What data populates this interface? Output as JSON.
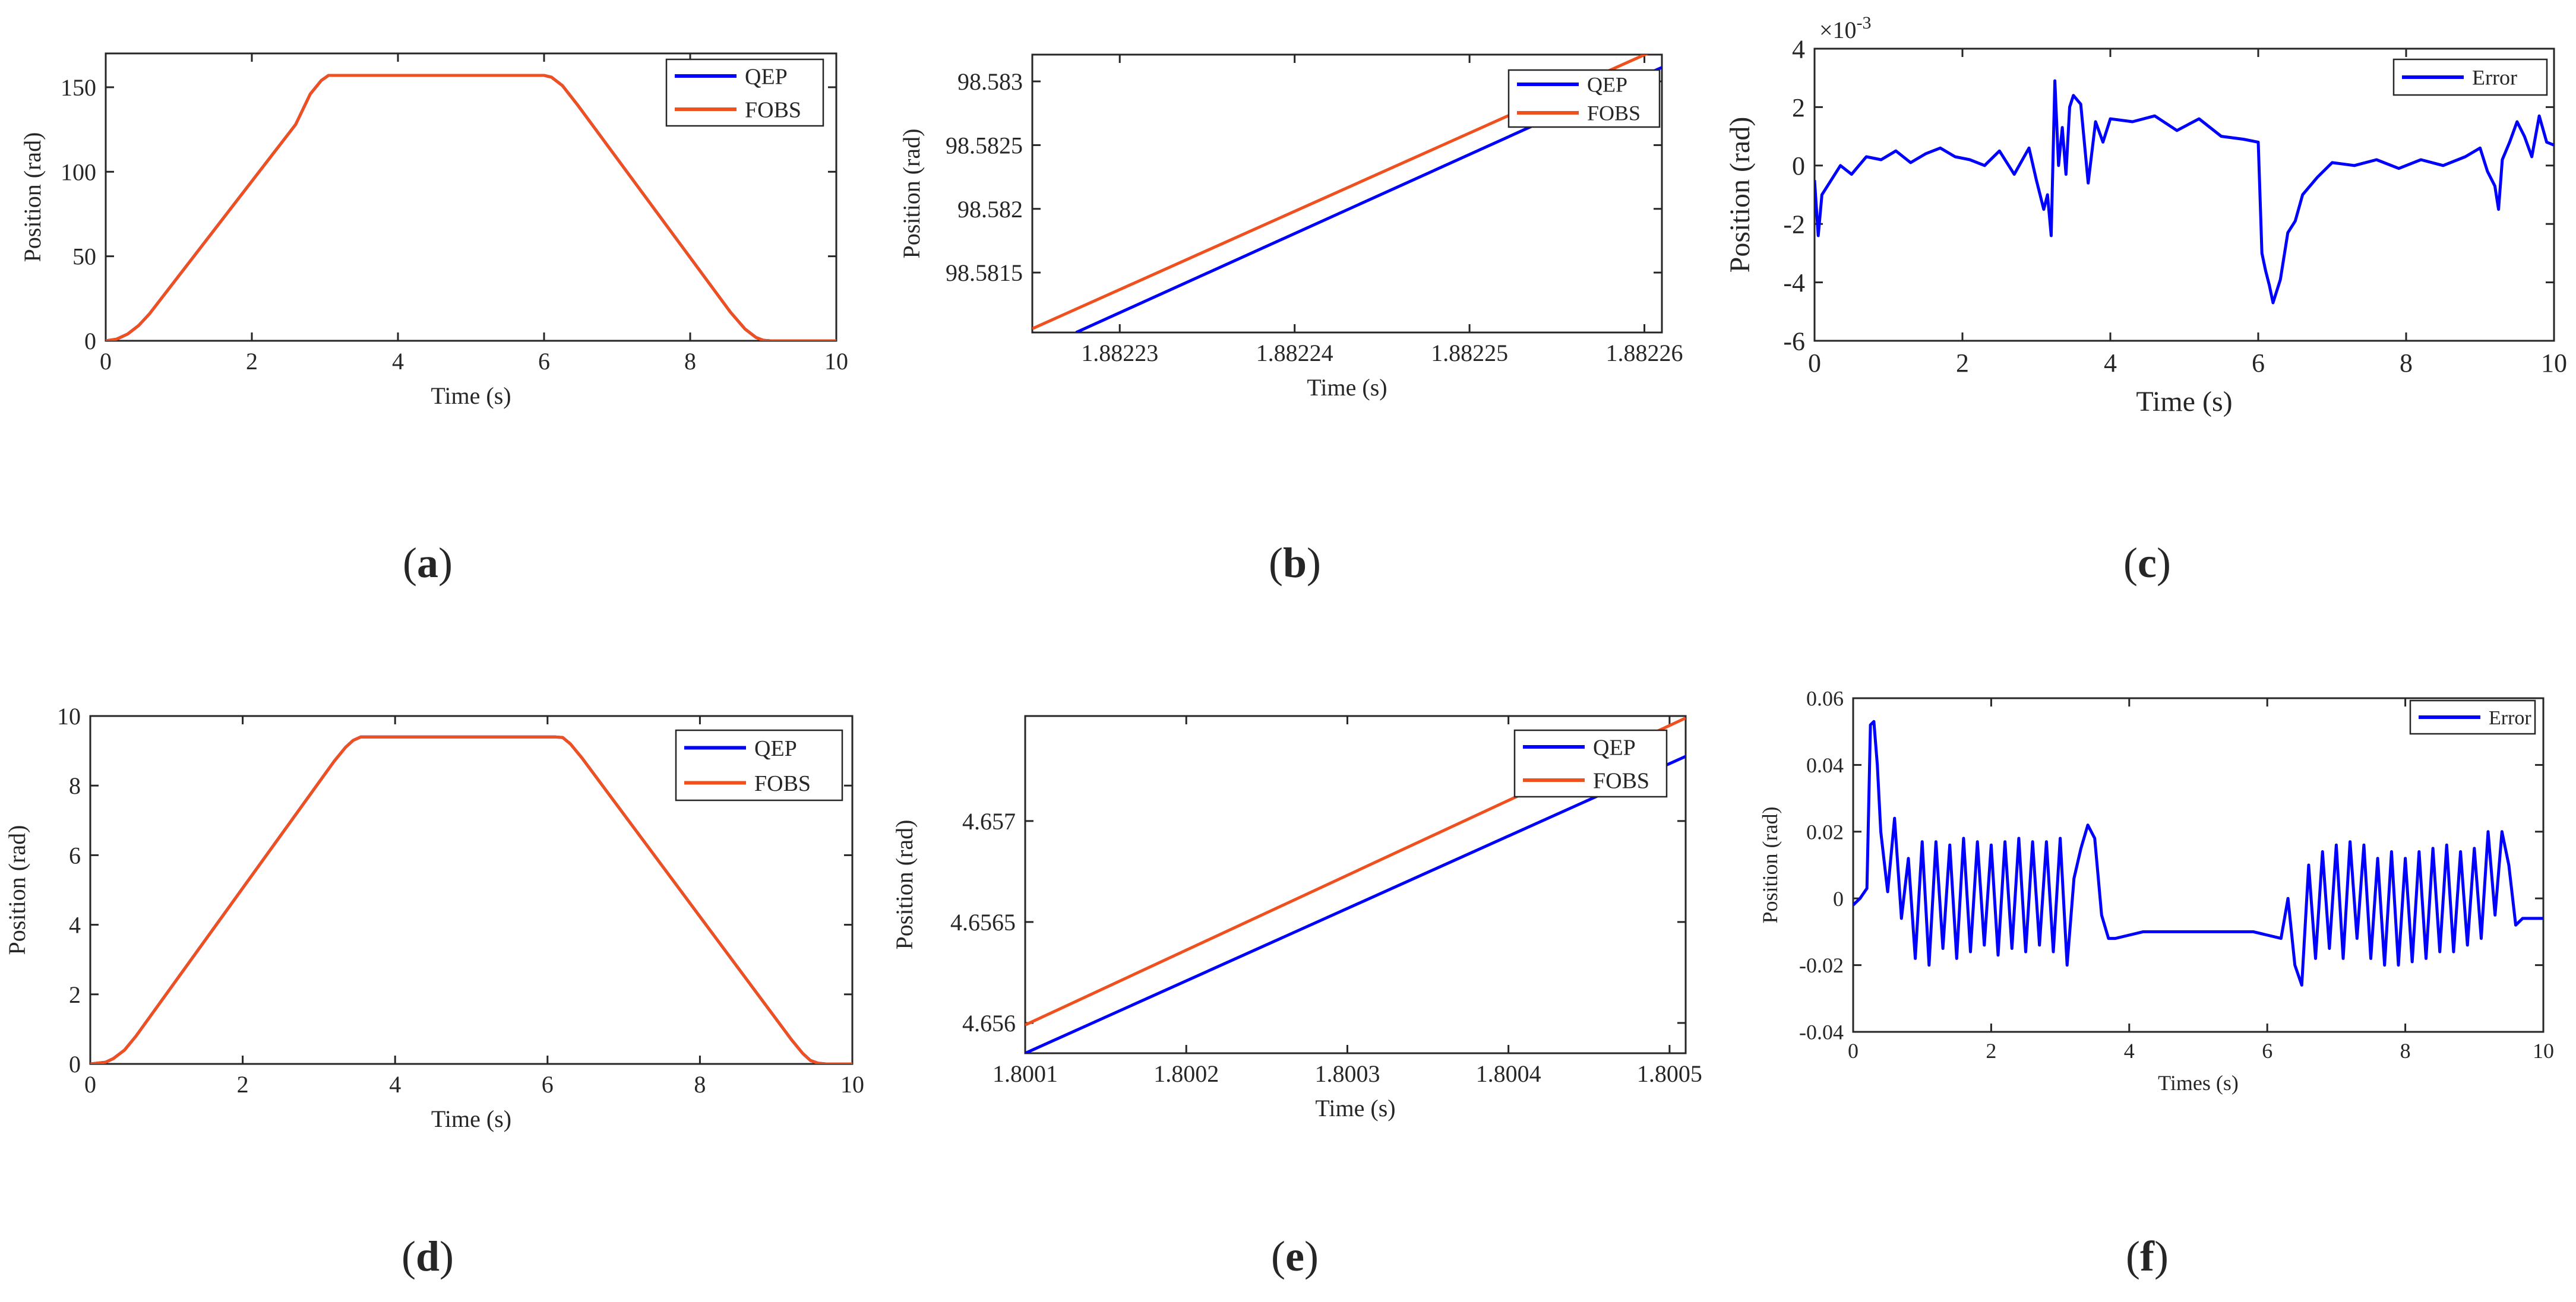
{
  "colors": {
    "qep": "#0000FF",
    "fobs": "#F0501E",
    "error": "#0000FF",
    "axis": "#262626"
  },
  "chart_data": [
    {
      "id": "a",
      "type": "line",
      "xlabel": "Time (s)",
      "ylabel": "Position (rad)",
      "xlim": [
        0,
        10
      ],
      "ylim": [
        0,
        170
      ],
      "xticks": [
        0,
        2,
        4,
        6,
        8,
        10
      ],
      "xtick_labels": [
        "0",
        "2",
        "4",
        "6",
        "8",
        "10"
      ],
      "yticks": [
        0,
        50,
        100,
        150
      ],
      "ytick_labels": [
        "0",
        "50",
        "100",
        "150"
      ],
      "legend": [
        "QEP",
        "FOBS"
      ],
      "series": [
        {
          "name": "QEP",
          "x": [
            0,
            0.15,
            0.3,
            0.45,
            0.6,
            2.6,
            2.8,
            2.95,
            3.05,
            3.2,
            6.0,
            6.1,
            6.25,
            6.45,
            8.55,
            8.75,
            8.9,
            9.0,
            9.1,
            10
          ],
          "y": [
            0,
            1,
            4,
            9,
            16,
            128,
            146,
            154,
            157,
            157,
            157,
            156,
            151,
            140,
            17,
            7,
            2,
            0.3,
            0,
            0
          ]
        },
        {
          "name": "FOBS",
          "x": [
            0,
            0.15,
            0.3,
            0.45,
            0.6,
            2.6,
            2.8,
            2.95,
            3.05,
            3.2,
            6.0,
            6.1,
            6.25,
            6.45,
            8.55,
            8.75,
            8.9,
            9.0,
            9.1,
            10
          ],
          "y": [
            0,
            1,
            4,
            9,
            16,
            128,
            146,
            154,
            157,
            157,
            157,
            156,
            151,
            140,
            17,
            7,
            2,
            0.3,
            0,
            0
          ]
        }
      ],
      "caption": "(a)"
    },
    {
      "id": "b",
      "type": "line",
      "xlabel": "Time (s)",
      "ylabel": "Position (rad)",
      "xlim": [
        1.882225,
        1.882261
      ],
      "ylim": [
        98.58103,
        98.58321
      ],
      "xticks": [
        1.88223,
        1.88224,
        1.88225,
        1.88226
      ],
      "xtick_labels": [
        "1.88223",
        "1.88224",
        "1.88225",
        "1.88226"
      ],
      "yticks": [
        98.5815,
        98.582,
        98.5825,
        98.583
      ],
      "ytick_labels": [
        "98.5815",
        "98.582",
        "98.5825",
        "98.583"
      ],
      "legend": [
        "QEP",
        "FOBS"
      ],
      "series": [
        {
          "name": "QEP",
          "x": [
            1.8822275,
            1.882261
          ],
          "y": [
            98.58103,
            98.58311
          ]
        },
        {
          "name": "FOBS",
          "x": [
            1.882225,
            1.882261
          ],
          "y": [
            98.58106,
            98.58327
          ]
        }
      ],
      "caption": "(b)"
    },
    {
      "id": "c",
      "type": "line",
      "xlabel": "Time (s)",
      "ylabel": "Position (rad)",
      "exponent_label": "×10",
      "exponent_power": "-3",
      "xlim": [
        0,
        10
      ],
      "ylim": [
        -6,
        4
      ],
      "xticks": [
        0,
        2,
        4,
        6,
        8,
        10
      ],
      "xtick_labels": [
        "0",
        "2",
        "4",
        "6",
        "8",
        "10"
      ],
      "yticks": [
        -6,
        -4,
        -2,
        0,
        2,
        4
      ],
      "ytick_labels": [
        "-6",
        "-4",
        "-2",
        "0",
        "2",
        "4"
      ],
      "legend": [
        "Error"
      ],
      "series": [
        {
          "name": "Error",
          "x": [
            0,
            0.05,
            0.1,
            0.2,
            0.35,
            0.5,
            0.7,
            0.9,
            1.1,
            1.3,
            1.5,
            1.7,
            1.9,
            2.1,
            2.3,
            2.5,
            2.7,
            2.9,
            3.0,
            3.1,
            3.15,
            3.2,
            3.25,
            3.3,
            3.35,
            3.4,
            3.45,
            3.5,
            3.6,
            3.7,
            3.8,
            3.9,
            4.0,
            4.3,
            4.6,
            4.9,
            5.2,
            5.5,
            5.8,
            6.0,
            6.05,
            6.1,
            6.15,
            6.2,
            6.3,
            6.4,
            6.5,
            6.6,
            6.8,
            7.0,
            7.3,
            7.6,
            7.9,
            8.2,
            8.5,
            8.8,
            9.0,
            9.1,
            9.2,
            9.25,
            9.3,
            9.4,
            9.5,
            9.6,
            9.7,
            9.8,
            9.9,
            10
          ],
          "y": [
            -0.5,
            -2.4,
            -1.0,
            -0.6,
            0.0,
            -0.3,
            0.3,
            0.2,
            0.5,
            0.1,
            0.4,
            0.6,
            0.3,
            0.2,
            0.0,
            0.5,
            -0.3,
            0.6,
            -0.5,
            -1.5,
            -1.0,
            -2.4,
            2.9,
            0.0,
            1.3,
            -0.3,
            2.0,
            2.4,
            2.1,
            -0.6,
            1.5,
            0.8,
            1.6,
            1.5,
            1.7,
            1.2,
            1.6,
            1.0,
            0.9,
            0.8,
            -3.0,
            -3.6,
            -4.1,
            -4.7,
            -3.9,
            -2.3,
            -1.9,
            -1.0,
            -0.4,
            0.1,
            0.0,
            0.2,
            -0.1,
            0.2,
            0.0,
            0.3,
            0.6,
            -0.2,
            -0.7,
            -1.5,
            0.2,
            0.8,
            1.5,
            1.0,
            0.3,
            1.7,
            0.8,
            0.7
          ]
        }
      ],
      "caption": "(c)"
    },
    {
      "id": "d",
      "type": "line",
      "xlabel": "Time (s)",
      "ylabel": "Position (rad)",
      "xlim": [
        0,
        10
      ],
      "ylim": [
        0,
        10
      ],
      "xticks": [
        0,
        2,
        4,
        6,
        8,
        10
      ],
      "xtick_labels": [
        "0",
        "2",
        "4",
        "6",
        "8",
        "10"
      ],
      "yticks": [
        0,
        2,
        4,
        6,
        8,
        10
      ],
      "ytick_labels": [
        "0",
        "2",
        "4",
        "6",
        "8",
        "10"
      ],
      "legend": [
        "QEP",
        "FOBS"
      ],
      "series": [
        {
          "name": "QEP",
          "x": [
            0,
            0.2,
            0.3,
            0.45,
            0.6,
            3.2,
            3.35,
            3.45,
            3.55,
            3.7,
            6.1,
            6.2,
            6.3,
            6.45,
            9.2,
            9.35,
            9.45,
            9.55,
            9.65,
            10
          ],
          "y": [
            0,
            0.05,
            0.15,
            0.4,
            0.8,
            8.7,
            9.1,
            9.3,
            9.4,
            9.4,
            9.4,
            9.38,
            9.2,
            8.8,
            0.7,
            0.3,
            0.1,
            0.02,
            0,
            0
          ]
        },
        {
          "name": "FOBS",
          "x": [
            0,
            0.2,
            0.3,
            0.45,
            0.6,
            3.2,
            3.35,
            3.45,
            3.55,
            3.7,
            6.1,
            6.2,
            6.3,
            6.45,
            9.2,
            9.35,
            9.45,
            9.55,
            9.65,
            10
          ],
          "y": [
            0,
            0.05,
            0.15,
            0.4,
            0.8,
            8.7,
            9.1,
            9.3,
            9.4,
            9.4,
            9.4,
            9.38,
            9.2,
            8.8,
            0.7,
            0.3,
            0.1,
            0.02,
            0,
            0
          ]
        }
      ],
      "caption": "(d)"
    },
    {
      "id": "e",
      "type": "line",
      "xlabel": "Time (s)",
      "ylabel": "Position (rad)",
      "xlim": [
        1.8001,
        1.80051
      ],
      "ylim": [
        4.65585,
        4.65752
      ],
      "xticks": [
        1.8001,
        1.8002,
        1.8003,
        1.8004,
        1.8005
      ],
      "xtick_labels": [
        "1.8001",
        "1.8002",
        "1.8003",
        "1.8004",
        "1.8005"
      ],
      "yticks": [
        4.656,
        4.6565,
        4.657
      ],
      "ytick_labels": [
        "4.656",
        "4.6565",
        "4.657"
      ],
      "legend": [
        "QEP",
        "FOBS"
      ],
      "series": [
        {
          "name": "QEP",
          "x": [
            1.8001,
            1.80051
          ],
          "y": [
            4.65585,
            4.65732
          ]
        },
        {
          "name": "FOBS",
          "x": [
            1.8001,
            1.80051
          ],
          "y": [
            4.65599,
            4.65751
          ]
        }
      ],
      "caption": "(e)"
    },
    {
      "id": "f",
      "type": "line",
      "xlabel": "Times (s)",
      "ylabel": "Position (rad)",
      "xlim": [
        0,
        10
      ],
      "ylim": [
        -0.04,
        0.06
      ],
      "xticks": [
        0,
        2,
        4,
        6,
        8,
        10
      ],
      "xtick_labels": [
        "0",
        "2",
        "4",
        "6",
        "8",
        "10"
      ],
      "yticks": [
        -0.04,
        -0.02,
        0,
        0.02,
        0.04,
        0.06
      ],
      "ytick_labels": [
        "-0.04",
        "-0.02",
        "0",
        "0.02",
        "0.04",
        "0.06"
      ],
      "legend": [
        "Error"
      ],
      "series": [
        {
          "name": "Error",
          "x": [
            0,
            0.1,
            0.2,
            0.25,
            0.3,
            0.35,
            0.4,
            0.5,
            0.6,
            0.7,
            0.8,
            0.9,
            1.0,
            1.1,
            1.2,
            1.3,
            1.4,
            1.5,
            1.6,
            1.7,
            1.8,
            1.9,
            2.0,
            2.1,
            2.2,
            2.3,
            2.4,
            2.5,
            2.6,
            2.7,
            2.8,
            2.9,
            3.0,
            3.1,
            3.2,
            3.3,
            3.4,
            3.5,
            3.6,
            3.7,
            3.8,
            4.0,
            4.2,
            5.0,
            5.8,
            6.0,
            6.2,
            6.3,
            6.4,
            6.5,
            6.6,
            6.7,
            6.8,
            6.9,
            7.0,
            7.1,
            7.2,
            7.3,
            7.4,
            7.5,
            7.6,
            7.7,
            7.8,
            7.9,
            8.0,
            8.1,
            8.2,
            8.3,
            8.4,
            8.5,
            8.6,
            8.7,
            8.8,
            8.9,
            9.0,
            9.1,
            9.2,
            9.3,
            9.4,
            9.5,
            9.6,
            9.7,
            10
          ],
          "y": [
            -0.002,
            0.0,
            0.003,
            0.052,
            0.053,
            0.04,
            0.02,
            0.002,
            0.024,
            -0.006,
            0.012,
            -0.018,
            0.017,
            -0.02,
            0.017,
            -0.015,
            0.016,
            -0.018,
            0.018,
            -0.016,
            0.017,
            -0.014,
            0.016,
            -0.017,
            0.017,
            -0.015,
            0.018,
            -0.016,
            0.017,
            -0.014,
            0.017,
            -0.016,
            0.018,
            -0.02,
            0.006,
            0.015,
            0.022,
            0.018,
            -0.005,
            -0.012,
            -0.012,
            -0.011,
            -0.01,
            -0.01,
            -0.01,
            -0.011,
            -0.012,
            0.0,
            -0.02,
            -0.026,
            0.01,
            -0.018,
            0.014,
            -0.015,
            0.016,
            -0.018,
            0.017,
            -0.012,
            0.016,
            -0.018,
            0.012,
            -0.02,
            0.014,
            -0.02,
            0.012,
            -0.019,
            0.014,
            -0.018,
            0.015,
            -0.016,
            0.016,
            -0.016,
            0.014,
            -0.014,
            0.015,
            -0.012,
            0.02,
            -0.005,
            0.02,
            0.01,
            -0.008,
            -0.006,
            -0.006
          ]
        }
      ],
      "caption": "(f)"
    }
  ]
}
